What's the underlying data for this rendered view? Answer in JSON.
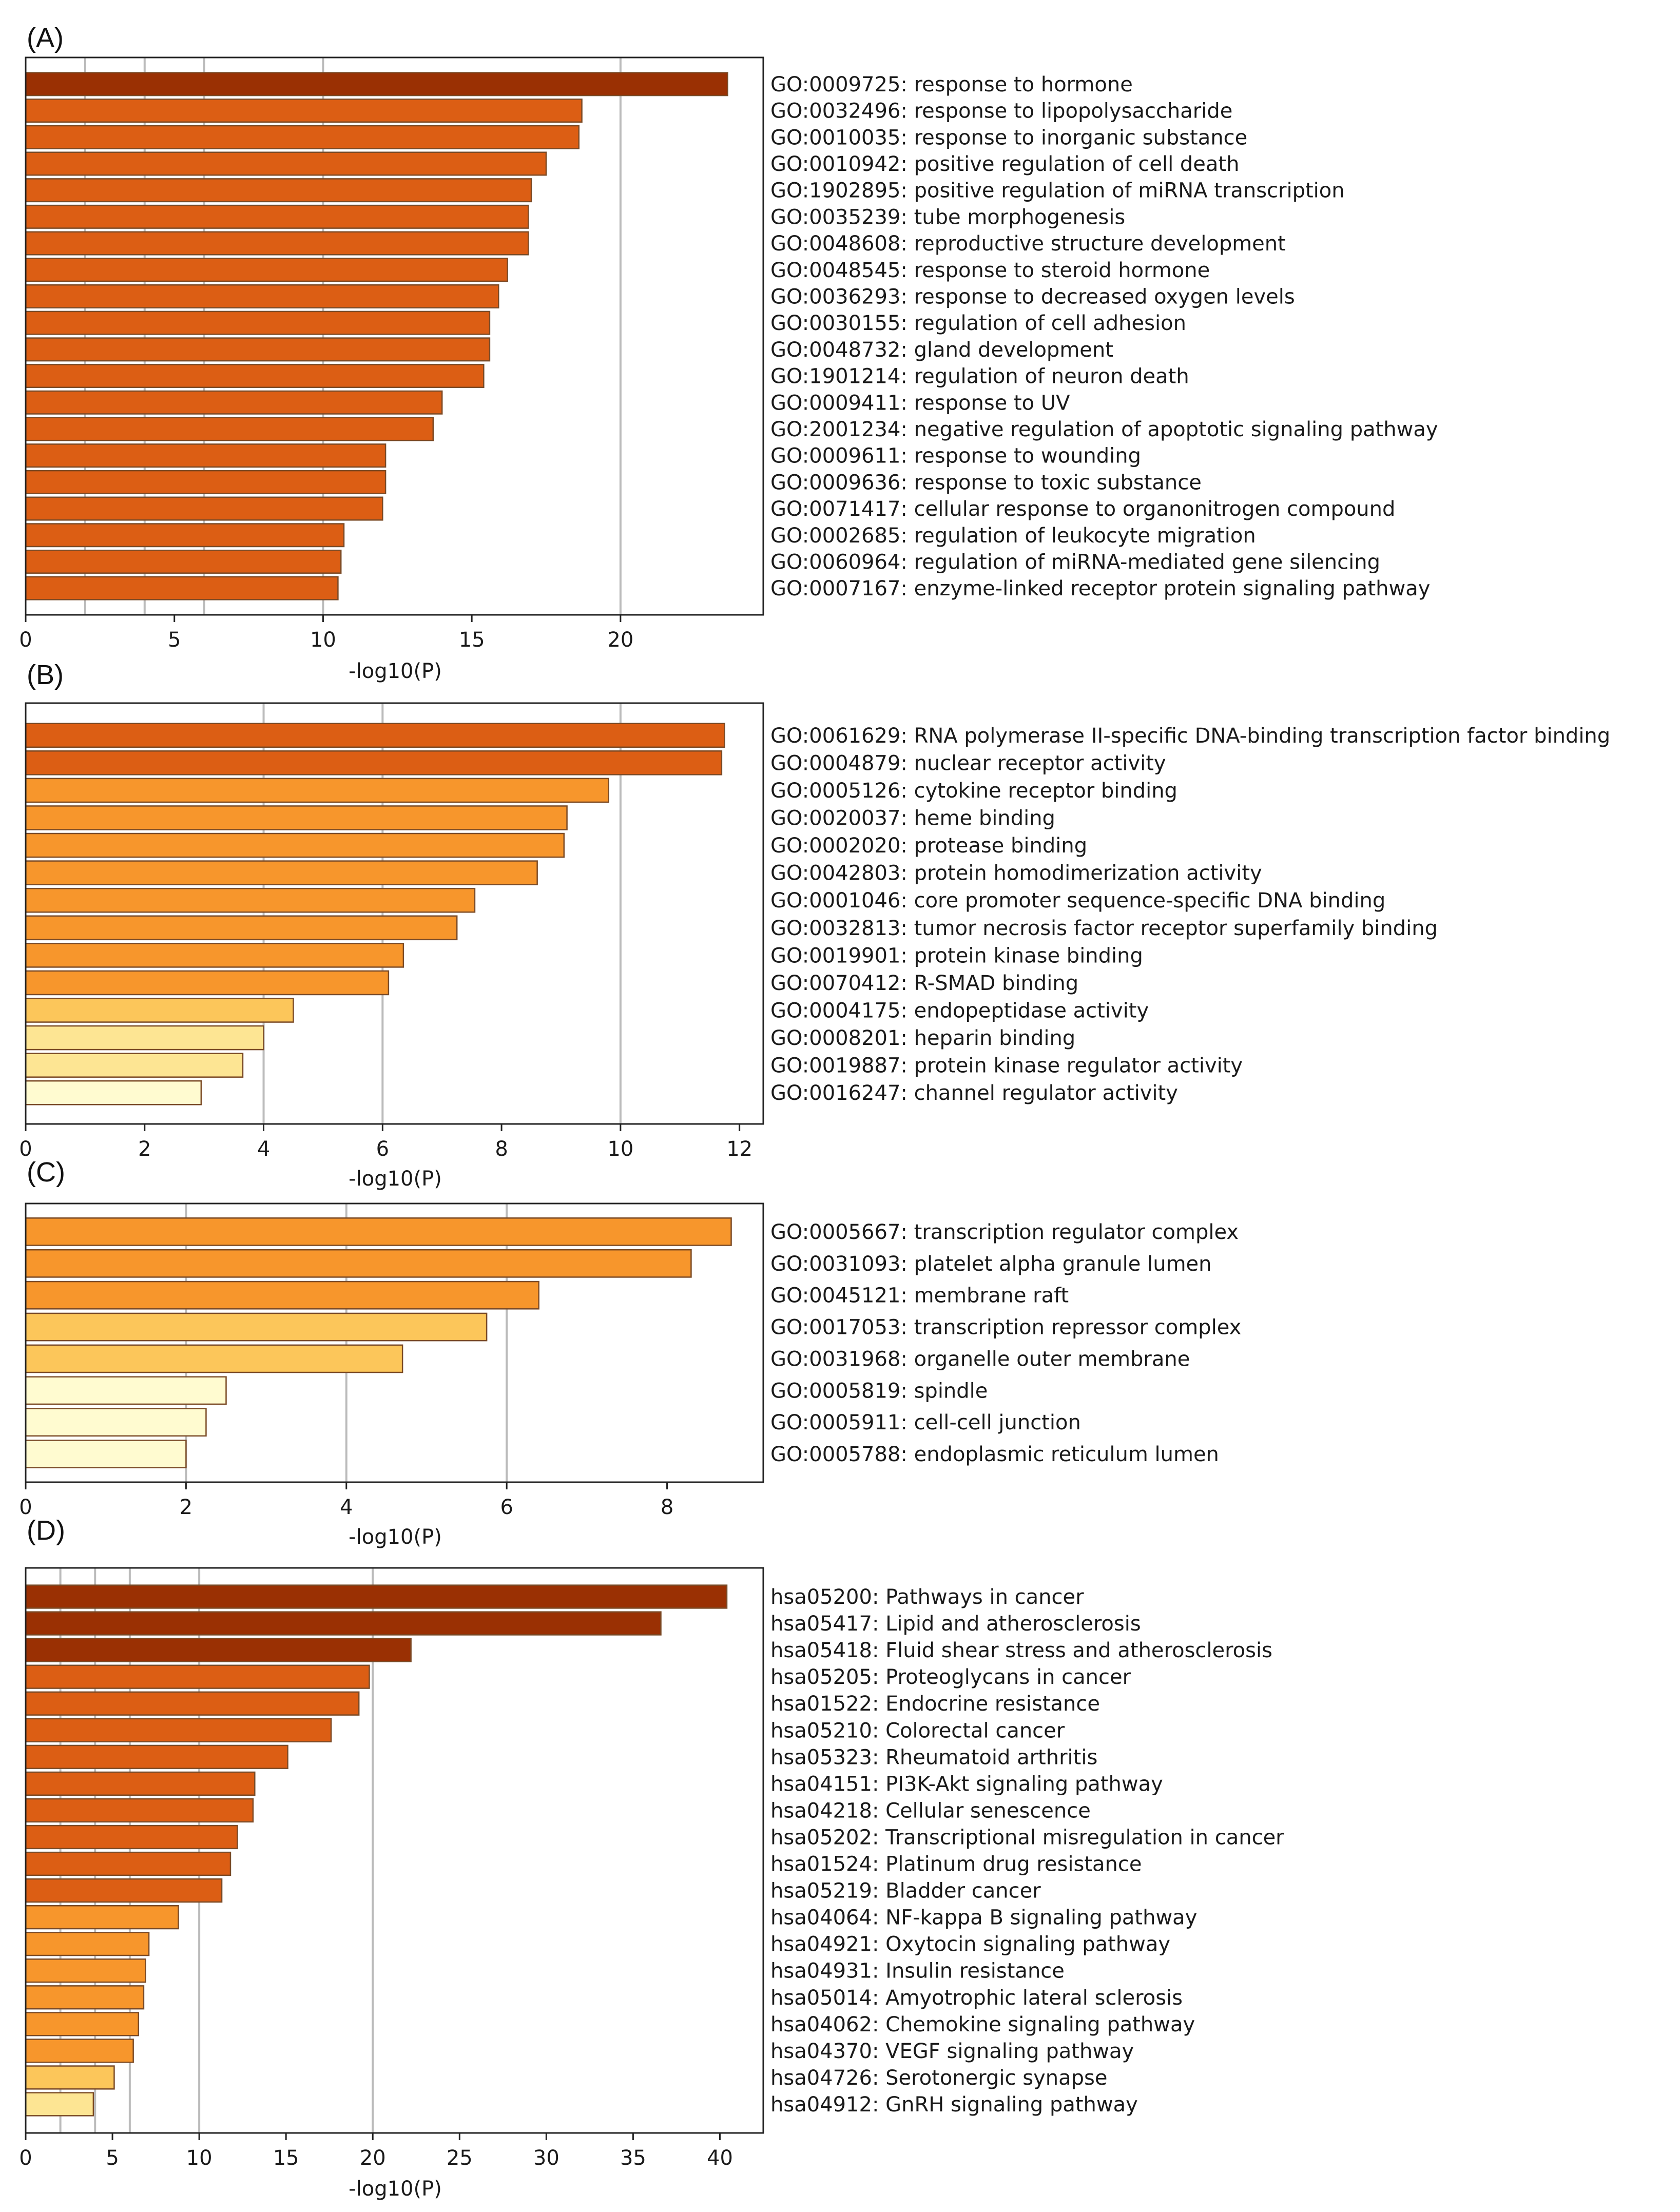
{
  "colors": {
    "c5": "#9a3003",
    "c4": "#dc5e14",
    "c3": "#f7962c",
    "c2": "#fcc65a",
    "c1": "#fde593",
    "c0": "#fffbd0",
    "edge": "#7a4a26",
    "grid": "#bbbbbb"
  },
  "chart_data": [
    {
      "panel": "(A)",
      "type": "bar",
      "orientation": "horizontal",
      "xlabel": "-log10(P)",
      "xlim": [
        0,
        24.8
      ],
      "xticks": [
        0,
        5,
        10,
        15,
        20
      ],
      "grid_x": [
        2,
        4,
        6,
        10,
        20
      ],
      "categories": [
        "GO:0009725: response to hormone",
        "GO:0032496: response to lipopolysaccharide",
        "GO:0010035: response to inorganic substance",
        "GO:0010942: positive regulation of cell death",
        "GO:1902895: positive regulation of miRNA transcription",
        "GO:0035239: tube morphogenesis",
        "GO:0048608: reproductive structure development",
        "GO:0048545: response to steroid hormone",
        "GO:0036293: response to decreased oxygen levels",
        "GO:0030155: regulation of cell adhesion",
        "GO:0048732: gland development",
        "GO:1901214: regulation of neuron death",
        "GO:0009411: response to UV",
        "GO:2001234: negative regulation of apoptotic signaling pathway",
        "GO:0009611: response to wounding",
        "GO:0009636: response to toxic substance",
        "GO:0071417: cellular response to organonitrogen compound",
        "GO:0002685: regulation of leukocyte migration",
        "GO:0060964: regulation of miRNA-mediated gene silencing",
        "GO:0007167: enzyme-linked receptor protein signaling pathway"
      ],
      "values": [
        23.6,
        18.7,
        18.6,
        17.5,
        17.0,
        16.9,
        16.9,
        16.2,
        15.9,
        15.6,
        15.6,
        15.4,
        14.0,
        13.7,
        12.1,
        12.1,
        12.0,
        10.7,
        10.6,
        10.5
      ],
      "color_levels": [
        "c5",
        "c4",
        "c4",
        "c4",
        "c4",
        "c4",
        "c4",
        "c4",
        "c4",
        "c4",
        "c4",
        "c4",
        "c4",
        "c4",
        "c4",
        "c4",
        "c4",
        "c4",
        "c4",
        "c4"
      ]
    },
    {
      "panel": "(B)",
      "type": "bar",
      "orientation": "horizontal",
      "xlabel": "-log10(P)",
      "xlim": [
        0,
        12.4
      ],
      "xticks": [
        0,
        2,
        4,
        6,
        8,
        10,
        12
      ],
      "grid_x": [
        4,
        6,
        10
      ],
      "categories": [
        "GO:0061629: RNA polymerase II-specific DNA-binding transcription factor binding",
        "GO:0004879: nuclear receptor activity",
        "GO:0005126: cytokine receptor binding",
        "GO:0020037: heme binding",
        "GO:0002020: protease binding",
        "GO:0042803: protein homodimerization activity",
        "GO:0001046: core promoter sequence-specific DNA binding",
        "GO:0032813: tumor necrosis factor receptor superfamily binding",
        "GO:0019901: protein kinase binding",
        "GO:0070412: R-SMAD binding",
        "GO:0004175: endopeptidase activity",
        "GO:0008201: heparin binding",
        "GO:0019887: protein kinase regulator activity",
        "GO:0016247: channel regulator activity"
      ],
      "values": [
        11.75,
        11.7,
        9.8,
        9.1,
        9.05,
        8.6,
        7.55,
        7.25,
        6.35,
        6.1,
        4.5,
        4.0,
        3.65,
        2.95
      ],
      "color_levels": [
        "c4",
        "c4",
        "c3",
        "c3",
        "c3",
        "c3",
        "c3",
        "c3",
        "c3",
        "c3",
        "c2",
        "c1",
        "c1",
        "c0"
      ]
    },
    {
      "panel": "(C)",
      "type": "bar",
      "orientation": "horizontal",
      "xlabel": "-log10(P)",
      "xlim": [
        0,
        9.2
      ],
      "xticks": [
        0,
        2,
        4,
        6,
        8
      ],
      "grid_x": [
        2,
        4,
        6
      ],
      "categories": [
        "GO:0005667: transcription regulator complex",
        "GO:0031093: platelet alpha granule lumen",
        "GO:0045121: membrane raft",
        "GO:0017053: transcription repressor complex",
        "GO:0031968: organelle outer membrane",
        "GO:0005819: spindle",
        "GO:0005911: cell-cell junction",
        "GO:0005788: endoplasmic reticulum lumen"
      ],
      "values": [
        8.8,
        8.3,
        6.4,
        5.75,
        4.7,
        2.5,
        2.25,
        2.0
      ],
      "color_levels": [
        "c3",
        "c3",
        "c3",
        "c2",
        "c2",
        "c0",
        "c0",
        "c0"
      ]
    },
    {
      "panel": "(D)",
      "type": "bar",
      "orientation": "horizontal",
      "xlabel": "-log10(P)",
      "xlim": [
        0,
        42.5
      ],
      "xticks": [
        0,
        5,
        10,
        15,
        20,
        25,
        30,
        35,
        40
      ],
      "grid_x": [
        2,
        4,
        6,
        10,
        20
      ],
      "categories": [
        "hsa05200: Pathways in cancer",
        "hsa05417: Lipid and atherosclerosis",
        "hsa05418: Fluid shear stress and atherosclerosis",
        "hsa05205: Proteoglycans in cancer",
        "hsa01522: Endocrine resistance",
        "hsa05210: Colorectal cancer",
        "hsa05323: Rheumatoid arthritis",
        "hsa04151: PI3K-Akt signaling pathway",
        "hsa04218: Cellular senescence",
        "hsa05202: Transcriptional misregulation in cancer",
        "hsa01524: Platinum drug resistance",
        "hsa05219: Bladder cancer",
        "hsa04064: NF-kappa B signaling pathway",
        "hsa04921: Oxytocin signaling pathway",
        "hsa04931: Insulin resistance",
        "hsa05014: Amyotrophic lateral sclerosis",
        "hsa04062: Chemokine signaling pathway",
        "hsa04370: VEGF signaling pathway",
        "hsa04726: Serotonergic synapse",
        "hsa04912: GnRH signaling pathway"
      ],
      "values": [
        40.4,
        36.6,
        22.2,
        19.8,
        19.2,
        17.6,
        15.1,
        13.2,
        13.1,
        12.2,
        11.8,
        11.3,
        8.8,
        7.1,
        6.9,
        6.8,
        6.5,
        6.2,
        5.1,
        3.9
      ],
      "color_levels": [
        "c5",
        "c5",
        "c5",
        "c4",
        "c4",
        "c4",
        "c4",
        "c4",
        "c4",
        "c4",
        "c4",
        "c4",
        "c3",
        "c3",
        "c3",
        "c3",
        "c3",
        "c3",
        "c2",
        "c1"
      ]
    }
  ]
}
